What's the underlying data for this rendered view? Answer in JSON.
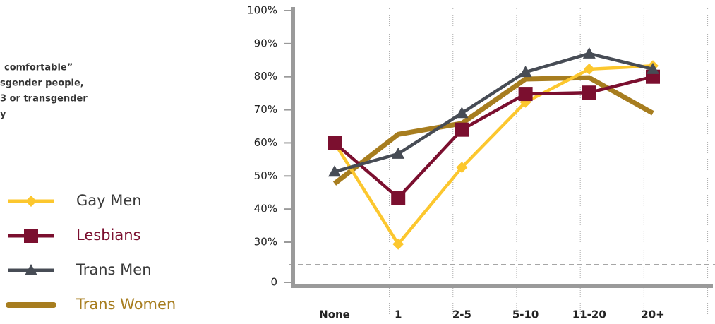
{
  "note_lines": [
    "comfortable”",
    "sgender people,",
    "3 or transgender",
    "y"
  ],
  "chart_data": {
    "type": "line",
    "categories": [
      "None",
      "1",
      "2-5",
      "5-10",
      "11-20",
      "20+"
    ],
    "series": [
      {
        "name": "Gay Men",
        "color": "#fcc72e",
        "marker": "diamond",
        "values": [
          60,
          29.4,
          52.6,
          72.3,
          82.3,
          83.3
        ]
      },
      {
        "name": "Lesbians",
        "color": "#7b0f2f",
        "marker": "square",
        "values": [
          60,
          43.4,
          64,
          74.8,
          75.2,
          80
        ]
      },
      {
        "name": "Trans Men",
        "color": "#474c55",
        "marker": "triangle",
        "values": [
          51.3,
          56.7,
          69,
          81.4,
          87,
          82.3
        ]
      },
      {
        "name": "Trans Women",
        "color": "#a77d1f",
        "marker": "none",
        "values": [
          47.7,
          62.6,
          65.9,
          79.3,
          79.7,
          69
        ]
      }
    ],
    "ylim": [
      0,
      100
    ],
    "axis_break": [
      0,
      30
    ],
    "yticks": [
      0,
      {
        "value": 30,
        "label": "30%"
      },
      {
        "value": 40,
        "label": "40%"
      },
      {
        "value": 50,
        "label": "50%"
      },
      {
        "value": 60,
        "label": "60%"
      },
      {
        "value": 70,
        "label": "70%"
      },
      {
        "value": 80,
        "label": "80%"
      },
      {
        "value": 90,
        "label": "90%"
      },
      {
        "value": 100,
        "label": "100%"
      }
    ]
  }
}
